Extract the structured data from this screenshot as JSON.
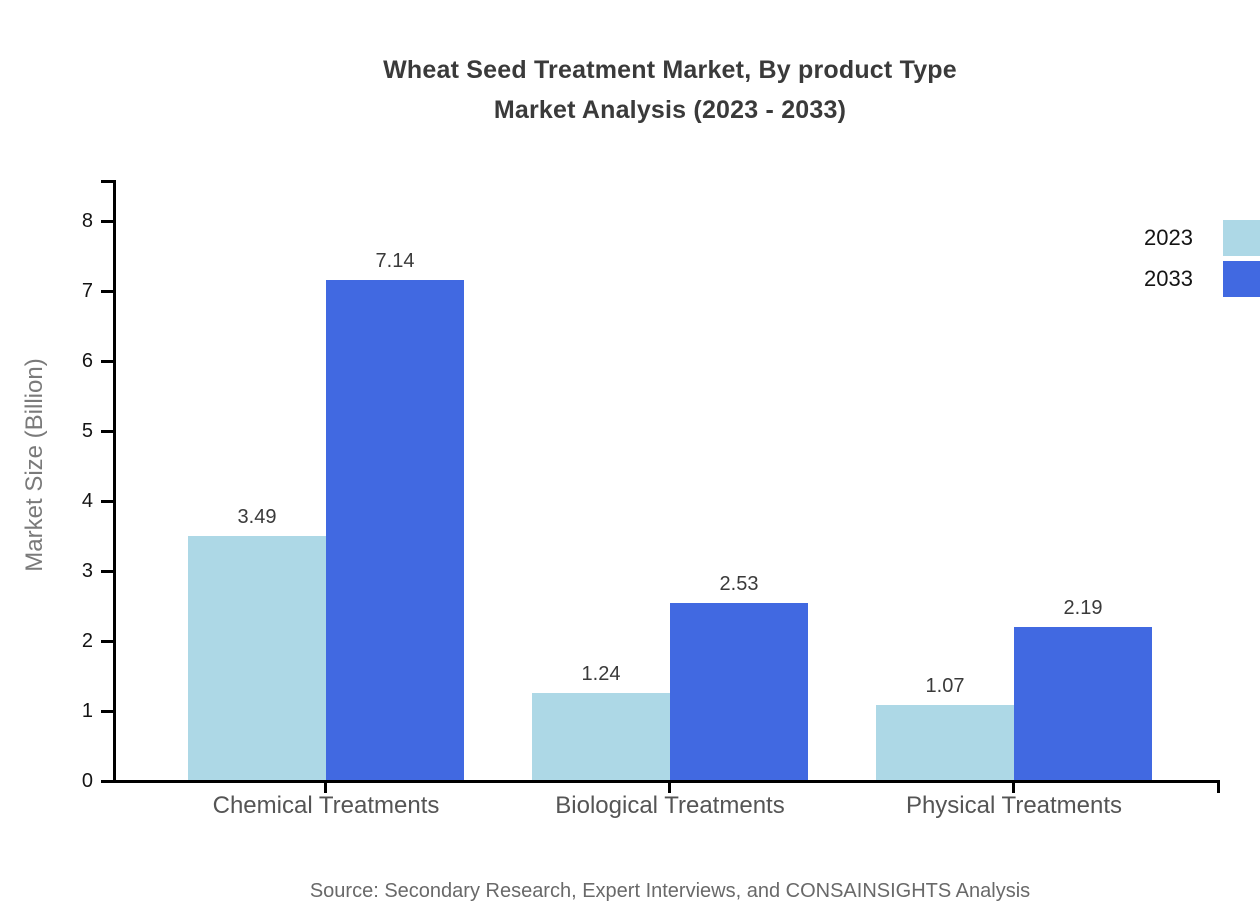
{
  "title": {
    "line1": "Wheat Seed Treatment Market, By product Type",
    "line2": "Market Analysis (2023 - 2033)"
  },
  "y_axis": {
    "label": "Market Size (Billion)",
    "tick_labels": [
      "0",
      "1",
      "2",
      "3",
      "4",
      "5",
      "6",
      "7",
      "8"
    ]
  },
  "legend": {
    "items": [
      {
        "label": "2023",
        "color": "#add8e6"
      },
      {
        "label": "2033",
        "color": "#4169e1"
      }
    ]
  },
  "source": "Source: Secondary Research, Expert Interviews, and CONSAINSIGHTS Analysis",
  "chart_data": {
    "type": "bar",
    "title": "Wheat Seed Treatment Market, By product Type Market Analysis (2023 - 2033)",
    "xlabel": "",
    "ylabel": "Market Size (Billion)",
    "categories": [
      "Chemical Treatments",
      "Biological Treatments",
      "Physical Treatments"
    ],
    "series": [
      {
        "name": "2023",
        "color": "#add8e6",
        "values": [
          3.49,
          1.24,
          1.07
        ]
      },
      {
        "name": "2033",
        "color": "#4169e1",
        "values": [
          7.14,
          2.53,
          2.19
        ]
      }
    ],
    "value_labels": [
      "3.49",
      "7.14",
      "1.24",
      "2.53",
      "1.07",
      "2.19"
    ],
    "ylim": [
      0,
      8.6
    ],
    "yticks": [
      0,
      1,
      2,
      3,
      4,
      5,
      6,
      7,
      8
    ],
    "grid": false,
    "legend_position": "upper-right",
    "bar_value_labels_shown": true
  }
}
